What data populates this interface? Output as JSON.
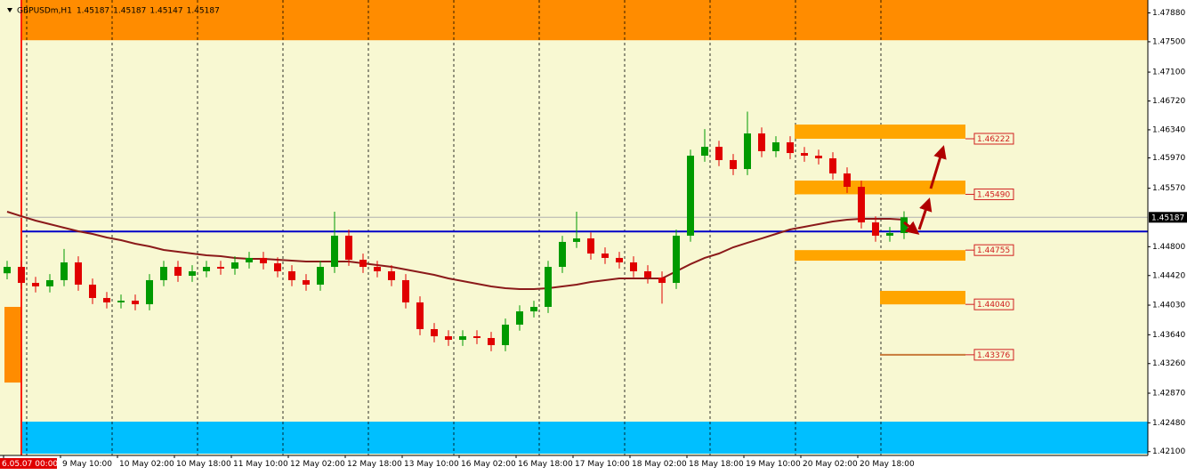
{
  "chart_data": {
    "type": "candlestick",
    "title": "GBPUSDm,H1",
    "header_values": [
      1.45187,
      1.45187,
      1.45147,
      1.45187
    ],
    "background": "#f8f8d2",
    "ylim": [
      1.4205,
      1.4805
    ],
    "yticks": [
      {
        "value": 1.4788,
        "label": "1.47880"
      },
      {
        "value": 1.475,
        "label": "1.47500"
      },
      {
        "value": 1.471,
        "label": "1.47100"
      },
      {
        "value": 1.4672,
        "label": "1.46720"
      },
      {
        "value": 1.4634,
        "label": "1.46340"
      },
      {
        "value": 1.4597,
        "label": "1.45970"
      },
      {
        "value": 1.4557,
        "label": "1.45570"
      },
      {
        "value": 1.448,
        "label": "1.44800"
      },
      {
        "value": 1.4442,
        "label": "1.44420"
      },
      {
        "value": 1.4403,
        "label": "1.44030"
      },
      {
        "value": 1.4364,
        "label": "1.43640"
      },
      {
        "value": 1.4326,
        "label": "1.43260"
      },
      {
        "value": 1.4287,
        "label": "1.42870"
      },
      {
        "value": 1.4248,
        "label": "1.42480"
      },
      {
        "value": 1.421,
        "label": "1.42100"
      }
    ],
    "xlabels": [
      "6.05.07 00:00",
      "9 May 10:00",
      "10 May 02:00",
      "10 May 18:00",
      "11 May 10:00",
      "12 May 02:00",
      "12 May 18:00",
      "13 May 10:00",
      "16 May 02:00",
      "16 May 18:00",
      "17 May 10:00",
      "18 May 02:00",
      "18 May 18:00",
      "19 May 10:00",
      "20 May 02:00",
      "20 May 18:00"
    ],
    "last_price": 1.45187,
    "hline": {
      "value": 1.45,
      "color": "#0000c8"
    },
    "bands": [
      {
        "from": 1.4752,
        "to": 1.4805,
        "color": "#ff8c00"
      },
      {
        "from": 1.42073,
        "to": 1.42495,
        "color": "#00bfff"
      },
      {
        "from": 1.4301,
        "to": 1.44007,
        "color": "#ff8c00"
      }
    ],
    "up_color": "#009a00",
    "down_color": "#e00000",
    "candles": {
      "open": [
        1.4445,
        1.44534,
        1.44323,
        1.44277,
        1.44359,
        1.44593,
        1.443,
        1.44124,
        1.44066,
        1.44089,
        1.44042,
        1.44359,
        1.44534,
        1.44417,
        1.44476,
        1.44534,
        1.44511,
        1.44593,
        1.44652,
        1.44581,
        1.44476,
        1.44359,
        1.443,
        1.44534,
        1.44945,
        1.44628,
        1.44534,
        1.44476,
        1.44359,
        1.44066,
        1.43714,
        1.4362,
        1.43573,
        1.4362,
        1.43597,
        1.43503,
        1.43773,
        1.43948,
        1.44007,
        1.44534,
        1.44863,
        1.44909,
        1.4471,
        1.44652,
        1.44593,
        1.44476,
        1.44394,
        1.44323,
        1.44945,
        1.45999,
        1.46116,
        1.45941,
        1.45823,
        1.46292,
        1.46058,
        1.46175,
        1.46034,
        1.45999,
        1.45964,
        1.45765,
        1.45589,
        1.4512,
        1.44945,
        1.4498
      ],
      "high": [
        1.44614,
        1.44614,
        1.44403,
        1.44439,
        1.4477,
        1.44673,
        1.4438,
        1.44204,
        1.44169,
        1.44169,
        1.44439,
        1.44614,
        1.44614,
        1.44556,
        1.44614,
        1.44614,
        1.44673,
        1.44732,
        1.44732,
        1.44661,
        1.44556,
        1.44439,
        1.44614,
        1.45261,
        1.45025,
        1.44708,
        1.44614,
        1.44556,
        1.44439,
        1.44146,
        1.43794,
        1.437,
        1.437,
        1.437,
        1.43677,
        1.43853,
        1.44028,
        1.44087,
        1.44614,
        1.44943,
        1.45261,
        1.44989,
        1.4479,
        1.44732,
        1.44673,
        1.44556,
        1.44474,
        1.45025,
        1.46079,
        1.4635,
        1.46196,
        1.46021,
        1.4658,
        1.46372,
        1.46255,
        1.46255,
        1.46114,
        1.46079,
        1.46044,
        1.45845,
        1.45669,
        1.452,
        1.4506,
        1.45267
      ],
      "low": [
        1.4437,
        1.44243,
        1.44197,
        1.44197,
        1.44279,
        1.4422,
        1.44044,
        1.43986,
        1.43986,
        1.43962,
        1.43962,
        1.44279,
        1.44337,
        1.44337,
        1.44396,
        1.44431,
        1.44431,
        1.44513,
        1.44501,
        1.44396,
        1.44279,
        1.4422,
        1.4422,
        1.44454,
        1.44548,
        1.44454,
        1.44396,
        1.44279,
        1.43986,
        1.43634,
        1.4354,
        1.43493,
        1.43493,
        1.43517,
        1.43423,
        1.43423,
        1.43693,
        1.43868,
        1.43927,
        1.44454,
        1.44783,
        1.4463,
        1.44572,
        1.44513,
        1.44396,
        1.44314,
        1.4405,
        1.44243,
        1.44865,
        1.45919,
        1.45861,
        1.45743,
        1.45743,
        1.45978,
        1.45978,
        1.45954,
        1.45919,
        1.45884,
        1.45685,
        1.45509,
        1.4504,
        1.44865,
        1.44865,
        1.449
      ],
      "close": [
        1.44534,
        1.44323,
        1.44277,
        1.44359,
        1.44593,
        1.443,
        1.44124,
        1.44066,
        1.44089,
        1.44042,
        1.44359,
        1.44534,
        1.44417,
        1.44476,
        1.44534,
        1.44511,
        1.44593,
        1.44652,
        1.44581,
        1.44476,
        1.44359,
        1.443,
        1.44534,
        1.44945,
        1.44628,
        1.44534,
        1.44476,
        1.44359,
        1.44066,
        1.43714,
        1.4362,
        1.43573,
        1.4362,
        1.43597,
        1.43503,
        1.43773,
        1.43948,
        1.44007,
        1.44534,
        1.44863,
        1.44909,
        1.4471,
        1.44652,
        1.44593,
        1.44476,
        1.44394,
        1.44323,
        1.44945,
        1.45999,
        1.46116,
        1.45941,
        1.45823,
        1.46292,
        1.46058,
        1.46175,
        1.46034,
        1.45999,
        1.45964,
        1.45765,
        1.45589,
        1.4512,
        1.44945,
        1.4498,
        1.45187
      ]
    },
    "ma": {
      "color": "#8b1a1a",
      "values": [
        1.45261,
        1.45202,
        1.45144,
        1.45097,
        1.4505,
        1.45003,
        1.44968,
        1.44921,
        1.44886,
        1.44839,
        1.44804,
        1.44757,
        1.44734,
        1.4471,
        1.44687,
        1.44675,
        1.44652,
        1.4464,
        1.4464,
        1.44628,
        1.44616,
        1.44605,
        1.44605,
        1.44605,
        1.44605,
        1.44581,
        1.44558,
        1.44534,
        1.44499,
        1.44464,
        1.44429,
        1.44382,
        1.44347,
        1.44312,
        1.44277,
        1.44253,
        1.44241,
        1.44241,
        1.44253,
        1.44277,
        1.443,
        1.44335,
        1.44359,
        1.44382,
        1.44382,
        1.44382,
        1.44382,
        1.44476,
        1.4457,
        1.44652,
        1.4471,
        1.44792,
        1.44851,
        1.44909,
        1.44968,
        1.45027,
        1.45062,
        1.45097,
        1.45132,
        1.45155,
        1.45167,
        1.45167,
        1.45167,
        1.45155
      ]
    },
    "zones": {
      "color": "#ffa500",
      "tops": [
        1.46409,
        1.45671,
        1.44755,
        1.44218
      ],
      "bottoms": [
        1.46222,
        1.4549,
        1.44616,
        1.4404
      ]
    },
    "levels": {
      "color": "#d02020",
      "values": [
        1.46222,
        1.4549,
        1.44755,
        1.4404,
        1.43376
      ],
      "value_labels": [
        "1.46222",
        "1.45490",
        "1.44755",
        "1.44040",
        "1.43376"
      ]
    }
  }
}
